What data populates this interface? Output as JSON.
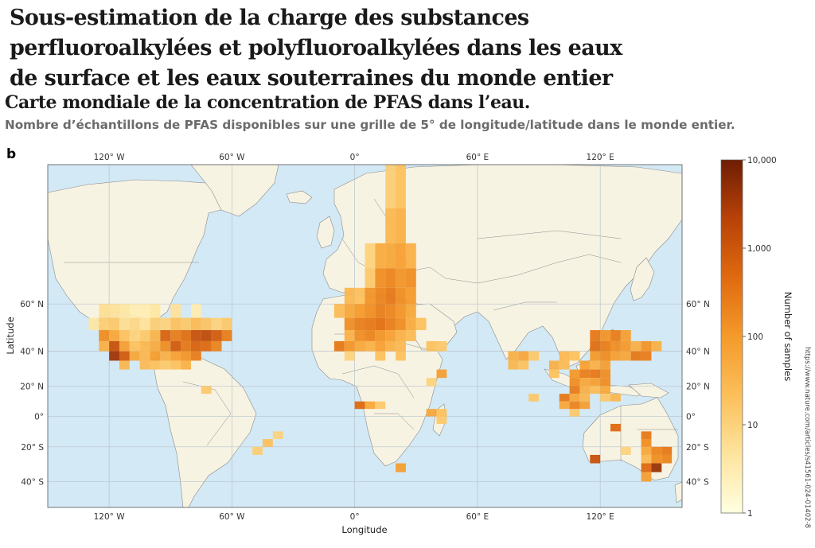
{
  "header": {
    "title": "Sous-estimation de la charge des substances perfluoroalkylées et polyfluoroalkylées dans les eaux de surface et les eaux souterraines du monde entier",
    "subtitle": "Carte mondiale de la concentration de PFAS dans l’eau.",
    "description": "Nombre d’échantillons de PFAS disponibles sur une grille de 5° de longitude/latitude dans le monde entier.",
    "panel_letter": "b"
  },
  "map": {
    "x_axis_title": "Longitude",
    "y_axis_title": "Latitude",
    "longitude_ticks": [
      {
        "lon": -120,
        "label": "120° W"
      },
      {
        "lon": -60,
        "label": "60° W"
      },
      {
        "lon": 0,
        "label": "0°"
      },
      {
        "lon": 60,
        "label": "60° E"
      },
      {
        "lon": 120,
        "label": "120° E"
      }
    ],
    "latitude_ticks": [
      {
        "lat": 60,
        "label": "60° N"
      },
      {
        "lat": 40,
        "label": "40° N"
      },
      {
        "lat": 20,
        "label": "20° N"
      },
      {
        "lat": 0,
        "label": "0°"
      },
      {
        "lat": -20,
        "label": "20° S"
      },
      {
        "lat": -40,
        "label": "40° S"
      }
    ],
    "lon_range": [
      -150,
      160
    ],
    "lat_range": [
      -52,
      84
    ],
    "grid_step_degrees": 5,
    "colors": {
      "ocean": "#d3e9f5",
      "land": "#f7f3e3",
      "border": "#8a8a8a",
      "gridline": "#b7c3cc"
    },
    "cells_lon_lat_count": [
      [
        -125,
        55,
        6
      ],
      [
        -120,
        55,
        5
      ],
      [
        -115,
        55,
        4
      ],
      [
        -110,
        55,
        3
      ],
      [
        -105,
        55,
        3
      ],
      [
        -100,
        55,
        4
      ],
      [
        -90,
        55,
        5
      ],
      [
        -80,
        55,
        3
      ],
      [
        -130,
        50,
        4
      ],
      [
        -125,
        50,
        12
      ],
      [
        -120,
        50,
        15
      ],
      [
        -115,
        50,
        6
      ],
      [
        -110,
        50,
        8
      ],
      [
        -105,
        50,
        5
      ],
      [
        -100,
        50,
        12
      ],
      [
        -95,
        50,
        10
      ],
      [
        -90,
        50,
        20
      ],
      [
        -85,
        50,
        15
      ],
      [
        -80,
        50,
        25
      ],
      [
        -75,
        50,
        18
      ],
      [
        -70,
        50,
        10
      ],
      [
        -65,
        50,
        15
      ],
      [
        -125,
        45,
        150
      ],
      [
        -120,
        45,
        60
      ],
      [
        -115,
        45,
        20
      ],
      [
        -110,
        45,
        10
      ],
      [
        -105,
        45,
        15
      ],
      [
        -100,
        45,
        35
      ],
      [
        -95,
        45,
        600
      ],
      [
        -90,
        45,
        250
      ],
      [
        -85,
        45,
        400
      ],
      [
        -80,
        45,
        1200
      ],
      [
        -75,
        45,
        1500
      ],
      [
        -70,
        45,
        800
      ],
      [
        -65,
        45,
        250
      ],
      [
        -125,
        40,
        40
      ],
      [
        -120,
        40,
        1200
      ],
      [
        -115,
        40,
        80
      ],
      [
        -110,
        40,
        20
      ],
      [
        -105,
        40,
        30
      ],
      [
        -100,
        40,
        50
      ],
      [
        -95,
        40,
        150
      ],
      [
        -90,
        40,
        800
      ],
      [
        -85,
        40,
        300
      ],
      [
        -80,
        40,
        600
      ],
      [
        -75,
        40,
        500
      ],
      [
        -70,
        40,
        200
      ],
      [
        -120,
        35,
        3500
      ],
      [
        -115,
        35,
        800
      ],
      [
        -110,
        35,
        60
      ],
      [
        -105,
        35,
        30
      ],
      [
        -100,
        35,
        90
      ],
      [
        -95,
        35,
        40
      ],
      [
        -90,
        35,
        80
      ],
      [
        -85,
        35,
        120
      ],
      [
        -80,
        35,
        250
      ],
      [
        -115,
        30,
        30
      ],
      [
        -105,
        30,
        25
      ],
      [
        -100,
        30,
        20
      ],
      [
        -95,
        30,
        15
      ],
      [
        -90,
        30,
        20
      ],
      [
        -85,
        30,
        40
      ],
      [
        -75,
        15,
        15
      ],
      [
        -40,
        -15,
        10
      ],
      [
        -45,
        -20,
        20
      ],
      [
        -50,
        -25,
        12
      ],
      [
        15,
        80,
        12
      ],
      [
        20,
        80,
        20
      ],
      [
        15,
        75,
        30
      ],
      [
        20,
        75,
        40
      ],
      [
        5,
        70,
        10
      ],
      [
        10,
        70,
        50
      ],
      [
        15,
        70,
        60
      ],
      [
        20,
        70,
        80
      ],
      [
        25,
        70,
        40
      ],
      [
        5,
        65,
        15
      ],
      [
        10,
        65,
        150
      ],
      [
        15,
        65,
        200
      ],
      [
        20,
        65,
        120
      ],
      [
        25,
        65,
        150
      ],
      [
        -5,
        60,
        30
      ],
      [
        0,
        60,
        20
      ],
      [
        5,
        60,
        120
      ],
      [
        10,
        60,
        200
      ],
      [
        15,
        60,
        300
      ],
      [
        20,
        60,
        150
      ],
      [
        25,
        60,
        100
      ],
      [
        -10,
        55,
        25
      ],
      [
        -5,
        55,
        60
      ],
      [
        0,
        55,
        100
      ],
      [
        5,
        55,
        150
      ],
      [
        10,
        55,
        250
      ],
      [
        15,
        55,
        200
      ],
      [
        20,
        55,
        120
      ],
      [
        25,
        55,
        60
      ],
      [
        -5,
        50,
        150
      ],
      [
        0,
        50,
        250
      ],
      [
        5,
        50,
        300
      ],
      [
        10,
        50,
        400
      ],
      [
        15,
        50,
        250
      ],
      [
        20,
        50,
        150
      ],
      [
        25,
        50,
        50
      ],
      [
        30,
        50,
        20
      ],
      [
        -5,
        45,
        40
      ],
      [
        0,
        45,
        150
      ],
      [
        5,
        45,
        200
      ],
      [
        10,
        45,
        120
      ],
      [
        15,
        45,
        80
      ],
      [
        20,
        45,
        40
      ],
      [
        25,
        45,
        25
      ],
      [
        -10,
        40,
        300
      ],
      [
        -5,
        40,
        120
      ],
      [
        0,
        40,
        60
      ],
      [
        5,
        40,
        40
      ],
      [
        10,
        40,
        80
      ],
      [
        15,
        40,
        40
      ],
      [
        20,
        40,
        30
      ],
      [
        -5,
        35,
        10
      ],
      [
        10,
        35,
        20
      ],
      [
        20,
        35,
        20
      ],
      [
        0,
        5,
        500
      ],
      [
        5,
        5,
        60
      ],
      [
        10,
        5,
        15
      ],
      [
        35,
        0,
        60
      ],
      [
        40,
        0,
        20
      ],
      [
        40,
        -5,
        15
      ],
      [
        20,
        -35,
        80
      ],
      [
        35,
        40,
        20
      ],
      [
        40,
        40,
        15
      ],
      [
        40,
        25,
        80
      ],
      [
        35,
        20,
        10
      ],
      [
        75,
        35,
        40
      ],
      [
        80,
        35,
        60
      ],
      [
        85,
        35,
        15
      ],
      [
        75,
        30,
        30
      ],
      [
        80,
        30,
        20
      ],
      [
        100,
        35,
        30
      ],
      [
        105,
        35,
        20
      ],
      [
        95,
        30,
        40
      ],
      [
        100,
        30,
        25
      ],
      [
        95,
        25,
        20
      ],
      [
        85,
        10,
        15
      ],
      [
        105,
        20,
        150
      ],
      [
        105,
        15,
        250
      ],
      [
        100,
        10,
        300
      ],
      [
        105,
        10,
        60
      ],
      [
        110,
        10,
        30
      ],
      [
        105,
        5,
        200
      ],
      [
        100,
        5,
        60
      ],
      [
        110,
        5,
        80
      ],
      [
        105,
        0,
        15
      ],
      [
        115,
        45,
        300
      ],
      [
        120,
        45,
        120
      ],
      [
        125,
        45,
        250
      ],
      [
        130,
        45,
        80
      ],
      [
        115,
        40,
        400
      ],
      [
        120,
        40,
        250
      ],
      [
        125,
        40,
        150
      ],
      [
        130,
        40,
        100
      ],
      [
        135,
        40,
        40
      ],
      [
        140,
        40,
        120
      ],
      [
        145,
        40,
        40
      ],
      [
        115,
        35,
        100
      ],
      [
        120,
        35,
        150
      ],
      [
        125,
        35,
        80
      ],
      [
        130,
        35,
        60
      ],
      [
        135,
        35,
        300
      ],
      [
        140,
        35,
        250
      ],
      [
        110,
        30,
        80
      ],
      [
        115,
        30,
        40
      ],
      [
        120,
        30,
        80
      ],
      [
        105,
        25,
        100
      ],
      [
        110,
        25,
        250
      ],
      [
        115,
        25,
        300
      ],
      [
        120,
        25,
        150
      ],
      [
        110,
        20,
        60
      ],
      [
        115,
        20,
        80
      ],
      [
        120,
        20,
        150
      ],
      [
        110,
        15,
        40
      ],
      [
        115,
        15,
        25
      ],
      [
        120,
        15,
        60
      ],
      [
        120,
        10,
        15
      ],
      [
        125,
        10,
        30
      ],
      [
        125,
        -10,
        500
      ],
      [
        140,
        -15,
        300
      ],
      [
        140,
        -20,
        150
      ],
      [
        115,
        -30,
        1200
      ],
      [
        130,
        -25,
        10
      ],
      [
        140,
        -25,
        60
      ],
      [
        145,
        -25,
        200
      ],
      [
        150,
        -25,
        300
      ],
      [
        140,
        -30,
        30
      ],
      [
        145,
        -30,
        150
      ],
      [
        150,
        -30,
        200
      ],
      [
        140,
        -35,
        500
      ],
      [
        145,
        -35,
        4000
      ],
      [
        140,
        -40,
        80
      ]
    ],
    "colorbar": {
      "title": "Number of samples",
      "min": 1,
      "max": 10000,
      "scale": "log",
      "tick_labels": [
        {
          "value": 10000,
          "label": "10,000"
        },
        {
          "value": 1000,
          "label": "1,000"
        },
        {
          "value": 100,
          "label": "100"
        },
        {
          "value": 10,
          "label": "10"
        },
        {
          "value": 1,
          "label": "1"
        }
      ],
      "color_stops": [
        "#ffffe0",
        "#fde49e",
        "#fcbf5a",
        "#f49a2a",
        "#e06a0f",
        "#b84208",
        "#6e1d04"
      ]
    },
    "source_url": "https://www.nature.com/articles/s41561-024-01402-8"
  }
}
